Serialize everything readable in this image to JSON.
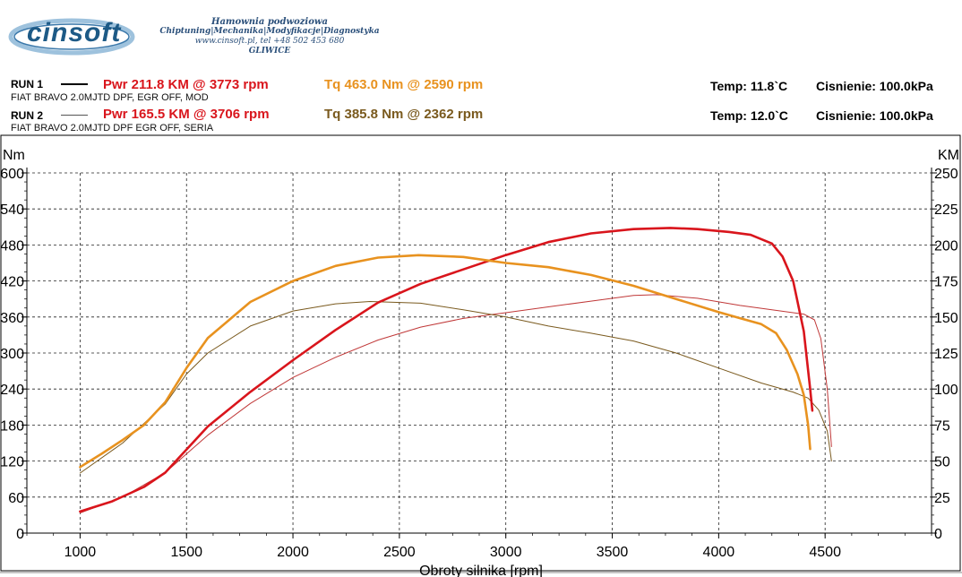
{
  "header": {
    "logo": "cinsoft",
    "line1": "Hamownia podwoziowa",
    "line2": "Chiptuning|Mechanika|Modyfikacje|Diagnostyka",
    "line3": "www.cinsoft.pl, tel +48 502 453 680",
    "line4": "GLIWICE"
  },
  "runs": [
    {
      "label": "RUN 1",
      "desc": "FIAT BRAVO 2.0MJTD DPF, EGR OFF, MOD",
      "pwr": "Pwr  211.8 KM @ 3773 rpm",
      "tq": "Tq 463.0 Nm @ 2590 rpm",
      "temp": "Temp: 11.8`C",
      "pressure": "Cisnienie: 100.0kPa",
      "pwr_color": "#d9151c",
      "tq_color": "#e8921f"
    },
    {
      "label": "RUN 2",
      "desc": "FIAT BRAVO 2.0MJTD DPF EGR OFF, SERIA",
      "pwr": "Pwr  165.5 KM @ 3706 rpm",
      "tq": "Tq 385.8 Nm @ 2362 rpm",
      "temp": "Temp: 12.0`C",
      "pressure": "Cisnienie: 100.0kPa",
      "pwr_color": "#d9151c",
      "tq_color": "#7a5a1e"
    }
  ],
  "chart_data": {
    "type": "line",
    "xlabel": "Obroty silnika [rpm]",
    "ylabel_left": "Nm",
    "ylabel_right": "KM",
    "xlim": [
      750,
      5000
    ],
    "ylim_left": [
      0,
      600
    ],
    "ylim_right": [
      0,
      250
    ],
    "x_ticks": [
      1000,
      1500,
      2000,
      2500,
      3000,
      3500,
      4000,
      4500
    ],
    "y_ticks_left": [
      0,
      60,
      120,
      180,
      240,
      300,
      360,
      420,
      480,
      540,
      600
    ],
    "y_ticks_right": [
      0,
      25,
      50,
      75,
      100,
      125,
      150,
      175,
      200,
      225,
      250
    ],
    "grid": true,
    "series": [
      {
        "name": "RUN 1 Pwr",
        "axis": "right",
        "color": "#d9151c",
        "width": 2.6,
        "x": [
          1000,
          1150,
          1300,
          1400,
          1500,
          1600,
          1800,
          2000,
          2200,
          2400,
          2600,
          2800,
          3000,
          3200,
          3400,
          3600,
          3773,
          3900,
          4050,
          4150,
          4250,
          4300,
          4350,
          4400,
          4430,
          4440
        ],
        "y": [
          15,
          22,
          32,
          42,
          58,
          74,
          98,
          120,
          141,
          160,
          173,
          183,
          193,
          202,
          208,
          211,
          211.8,
          211,
          209,
          207,
          201,
          192,
          175,
          140,
          100,
          85
        ]
      },
      {
        "name": "RUN 1 Tq",
        "axis": "left",
        "color": "#e8921f",
        "width": 2.6,
        "x": [
          1000,
          1100,
          1200,
          1300,
          1400,
          1500,
          1600,
          1800,
          2000,
          2200,
          2400,
          2590,
          2800,
          3000,
          3200,
          3400,
          3600,
          3800,
          4000,
          4100,
          4200,
          4270,
          4320,
          4370,
          4400,
          4420,
          4430
        ],
        "y": [
          110,
          132,
          155,
          180,
          218,
          275,
          325,
          385,
          420,
          445,
          459,
          463,
          460,
          450,
          443,
          430,
          412,
          390,
          368,
          358,
          348,
          333,
          305,
          265,
          230,
          180,
          140
        ]
      },
      {
        "name": "RUN 2 Pwr",
        "axis": "right",
        "color": "#c03838",
        "width": 1,
        "x": [
          1000,
          1200,
          1400,
          1500,
          1600,
          1800,
          2000,
          2200,
          2400,
          2600,
          2800,
          3000,
          3200,
          3400,
          3600,
          3706,
          3900,
          4100,
          4300,
          4400,
          4450,
          4480,
          4510,
          4530
        ],
        "y": [
          14,
          25,
          42,
          55,
          68,
          90,
          108,
          122,
          134,
          143,
          149,
          153,
          157,
          161,
          165,
          165.5,
          163,
          158,
          154,
          152,
          148,
          135,
          100,
          60
        ]
      },
      {
        "name": "RUN 2 Tq",
        "axis": "left",
        "color": "#7a5a1e",
        "width": 1,
        "x": [
          1000,
          1200,
          1400,
          1500,
          1600,
          1800,
          2000,
          2200,
          2362,
          2600,
          2800,
          3000,
          3200,
          3400,
          3600,
          3800,
          4000,
          4200,
          4350,
          4420,
          4470,
          4510,
          4530
        ],
        "y": [
          100,
          150,
          215,
          265,
          300,
          345,
          370,
          382,
          385.8,
          383,
          372,
          360,
          345,
          333,
          320,
          300,
          275,
          250,
          235,
          225,
          205,
          170,
          120
        ]
      }
    ]
  }
}
